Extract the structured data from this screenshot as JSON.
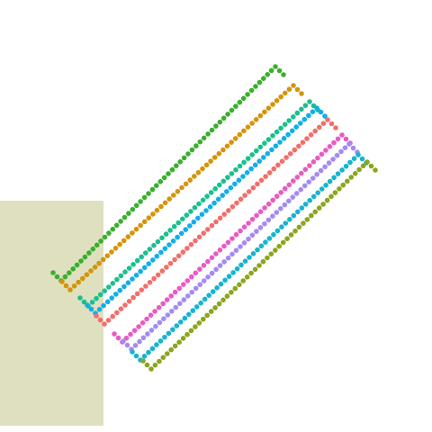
{
  "colors": {
    "background": "#ffffff",
    "panel": "#dfe0c0"
  },
  "tracks": [
    {
      "name": "green",
      "color": "#3cae2e"
    },
    {
      "name": "orange",
      "color": "#d4940c"
    },
    {
      "name": "teal",
      "color": "#1bbf8e"
    },
    {
      "name": "sky",
      "color": "#12aee8"
    },
    {
      "name": "salmon",
      "color": "#f06f6a"
    },
    {
      "name": "magenta",
      "color": "#e85bc3"
    },
    {
      "name": "violet",
      "color": "#a58af2"
    },
    {
      "name": "cyan",
      "color": "#16b4cf"
    },
    {
      "name": "olive",
      "color": "#8aa61c"
    }
  ]
}
